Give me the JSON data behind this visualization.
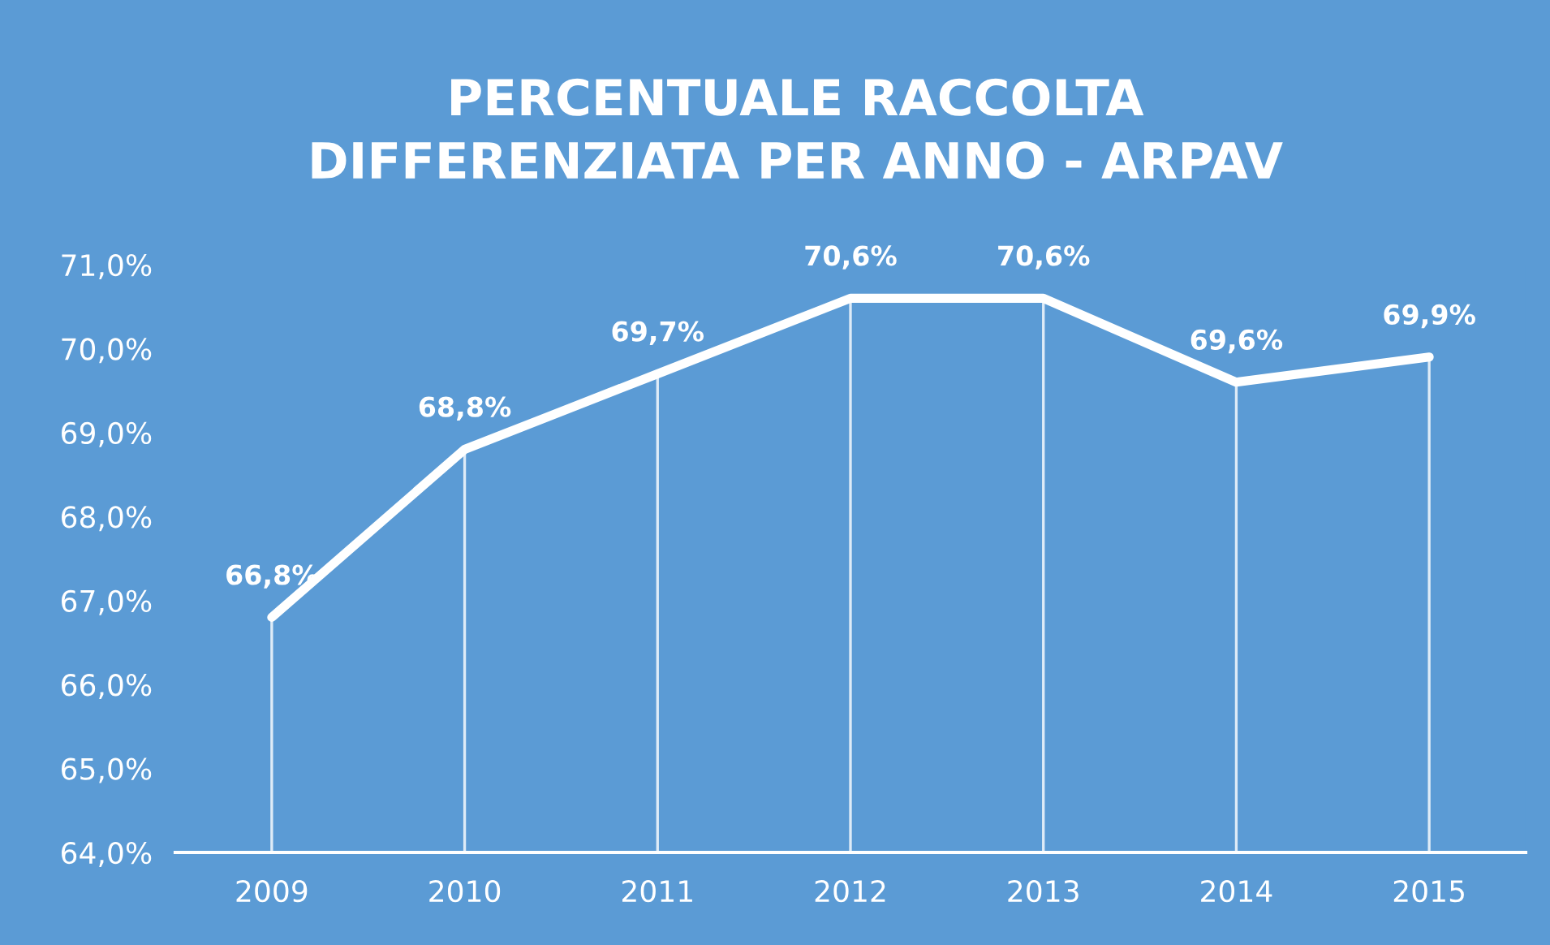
{
  "chart_data": {
    "type": "line",
    "title": "PERCENTUALE RACCOLTA\nDIFFERENZIATA PER ANNO - ARPAV",
    "categories": [
      "2009",
      "2010",
      "2011",
      "2012",
      "2013",
      "2014",
      "2015"
    ],
    "series": [
      {
        "color": "#ffffff",
        "values": [
          66.8,
          68.8,
          69.7,
          70.6,
          70.6,
          69.6,
          69.9
        ],
        "value_labels": [
          "66,8%",
          "68,8%",
          "69,7%",
          "70,6%",
          "70,6%",
          "69,6%",
          "69,9%"
        ]
      }
    ],
    "ylim": [
      64,
      71
    ],
    "yticks": [
      {
        "value": 64,
        "label": "64,0%"
      },
      {
        "value": 65,
        "label": "65,0%"
      },
      {
        "value": 66,
        "label": "66,0%"
      },
      {
        "value": 67,
        "label": "67,0%"
      },
      {
        "value": 68,
        "label": "68,0%"
      },
      {
        "value": 69,
        "label": "69,0%"
      },
      {
        "value": 70,
        "label": "70,0%"
      },
      {
        "value": 71,
        "label": "71,0%"
      }
    ],
    "grid": "x",
    "legend": false,
    "marker": "none",
    "line_style": "solid"
  }
}
